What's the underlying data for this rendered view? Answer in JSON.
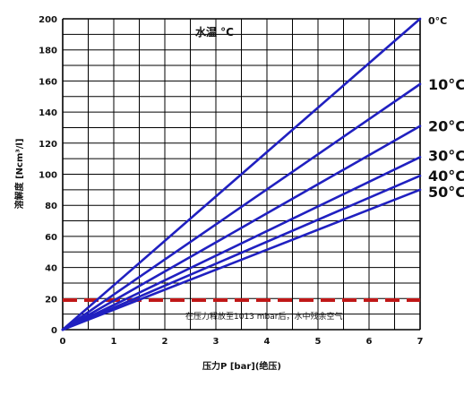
{
  "chart_data": {
    "type": "line",
    "title": "水温 °C",
    "xlabel": "压力P [bar](绝压)",
    "ylabel": "溶解度 [Ncm³/l]",
    "xlim": [
      0,
      7
    ],
    "ylim": [
      0,
      200
    ],
    "x_ticks": [
      "0",
      "1",
      "2",
      "3",
      "4",
      "5",
      "6",
      "7"
    ],
    "y_ticks": [
      "0",
      "20",
      "40",
      "60",
      "80",
      "100",
      "120",
      "140",
      "160",
      "180",
      "200"
    ],
    "grid": true,
    "series": [
      {
        "name": "0°C",
        "x": [
          0,
          7
        ],
        "y": [
          0,
          200
        ]
      },
      {
        "name": "10°C",
        "x": [
          0,
          7
        ],
        "y": [
          0,
          158
        ]
      },
      {
        "name": "20°C",
        "x": [
          0,
          7
        ],
        "y": [
          0,
          131
        ]
      },
      {
        "name": "30°C",
        "x": [
          0,
          7
        ],
        "y": [
          0,
          111
        ]
      },
      {
        "name": "40°C",
        "x": [
          0,
          7
        ],
        "y": [
          0,
          99
        ]
      },
      {
        "name": "50°C",
        "x": [
          0,
          7
        ],
        "y": [
          0,
          90
        ]
      }
    ],
    "reference_line": {
      "y": 19,
      "label": "在压力释放至1013 mbar后，水中残余空气"
    }
  },
  "colors": {
    "series": "#2020c0",
    "reference": "#c01818",
    "grid": "#000000",
    "background": "#ffffff"
  }
}
